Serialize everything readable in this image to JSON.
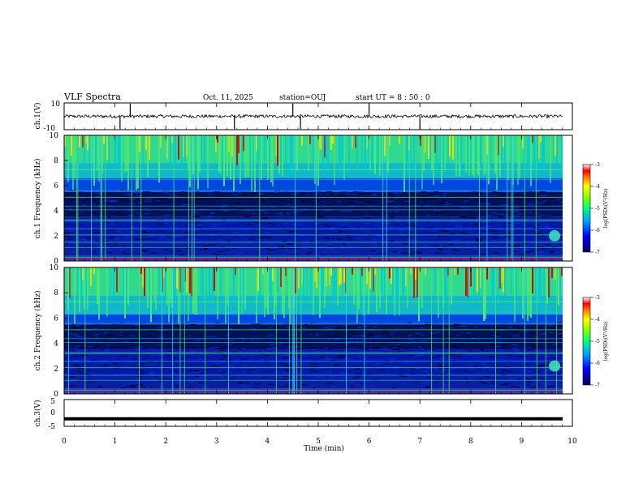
{
  "header": {
    "title": "VLF Spectra",
    "date": "Oct. 11, 2025",
    "station": "station=OUJ",
    "start_ut": "start UT =  8 : 50 : 0"
  },
  "colors": {
    "noise_deep": "#000030",
    "noise_blue": "#0020b0",
    "mid_cyan": "#00c8d8",
    "high_green": "#50e870",
    "hot_yellow": "#f0e000",
    "hot_red": "#d00000",
    "trace": "#000000"
  },
  "chart_data": [
    {
      "type": "line",
      "name": "channel-1-waveform",
      "ylabel": "ch.1(V)",
      "ylim": [
        -10,
        10
      ],
      "y_ticks": [
        "10",
        "-10"
      ],
      "baseline": 0,
      "spike_times_min": [
        1.1,
        1.3,
        3.35,
        4.5,
        4.65,
        6.0,
        7.0
      ]
    },
    {
      "type": "heatmap",
      "name": "channel-1-spectrogram",
      "ylabel": "ch.1 Frequency (kHz)",
      "ylim": [
        0,
        10
      ],
      "y_ticks": [
        "0",
        "2",
        "4",
        "6",
        "8",
        "10"
      ],
      "colorbar": {
        "label": "log(PSD)(V²/Hz)",
        "range": [
          -7,
          -3
        ],
        "ticks": [
          "-3",
          "-4",
          "-5",
          "-6",
          "-7"
        ]
      },
      "cutoff_khz": 6.0,
      "hiss_khz": 2.0,
      "hiss_time_min": 9.65
    },
    {
      "type": "heatmap",
      "name": "channel-2-spectrogram",
      "ylabel": "ch.2 Frequency (kHz)",
      "ylim": [
        0,
        10
      ],
      "y_ticks": [
        "0",
        "2",
        "4",
        "6",
        "8",
        "10"
      ],
      "colorbar": {
        "label": "log(PSD)(V²/Hz)",
        "range": [
          -7,
          -3
        ],
        "ticks": [
          "-3",
          "-4",
          "-5",
          "-6",
          "-7"
        ]
      },
      "cutoff_khz": 6.0,
      "hiss_khz": 2.2,
      "hiss_time_min": 9.65
    },
    {
      "type": "line",
      "name": "channel-3-waveform",
      "ylabel": "ch.3(V)",
      "ylim": [
        -5,
        5
      ],
      "y_ticks": [
        "5",
        "0",
        "-5"
      ],
      "level": -2.2
    }
  ],
  "x_axis": {
    "label": "Time (min)",
    "xlim": [
      0,
      10
    ],
    "ticks": [
      "0",
      "1",
      "2",
      "3",
      "4",
      "5",
      "6",
      "7",
      "8",
      "9",
      "10"
    ]
  }
}
